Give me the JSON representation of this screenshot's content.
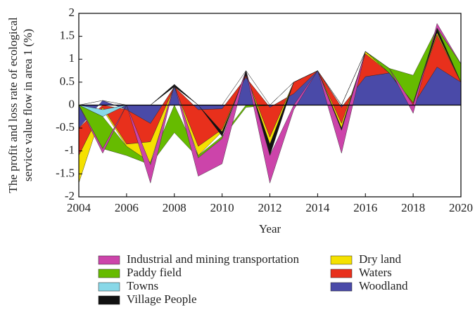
{
  "chart_data": {
    "type": "stacked_area",
    "xlabel": "Year",
    "ylabel": [
      "The profit and loss rate of ecological",
      "service value flow in area 1 (%)"
    ],
    "x": [
      2004,
      2005,
      2006,
      2007,
      2008,
      2009,
      2010,
      2011,
      2012,
      2013,
      2014,
      2015,
      2016,
      2017,
      2018,
      2019,
      2020
    ],
    "xlim": [
      2004,
      2020
    ],
    "xticks": [
      2004,
      2006,
      2008,
      2010,
      2012,
      2014,
      2016,
      2018,
      2020
    ],
    "ylim": [
      -2,
      2
    ],
    "yticks": [
      2,
      1.5,
      1,
      0.5,
      0,
      -0.5,
      -1,
      -1.5,
      -2
    ],
    "series": [
      {
        "name": "Industrial and mining transportation",
        "color": "#cc44aa",
        "values": [
          0,
          -0.1,
          0,
          -0.4,
          0,
          -0.4,
          -0.55,
          0,
          -0.6,
          -0.1,
          0,
          -0.5,
          0,
          0,
          -0.18,
          0.1,
          0
        ]
      },
      {
        "name": "Paddy field",
        "color": "#66bb00",
        "values": [
          0,
          -0.7,
          -0.2,
          -0.05,
          -0.6,
          -0.05,
          -0.05,
          -0.05,
          0,
          0,
          0,
          0,
          0,
          0.1,
          0.6,
          0,
          0.4
        ]
      },
      {
        "name": "Towns",
        "color": "#88d8e8",
        "values": [
          0,
          -0.15,
          0,
          0,
          0,
          0,
          0,
          0,
          0,
          0,
          0,
          0,
          0,
          0,
          0,
          0,
          0
        ]
      },
      {
        "name": "Village People",
        "color": "#111111",
        "values": [
          0,
          0,
          0,
          0,
          0.05,
          0,
          -0.1,
          0.1,
          -0.25,
          0,
          0,
          -0.05,
          0,
          0,
          0,
          0.1,
          0
        ]
      },
      {
        "name": "Dry land",
        "color": "#f5e100",
        "values": [
          -0.6,
          -0.05,
          -0.05,
          -0.45,
          0,
          -0.2,
          -0.05,
          0,
          -0.15,
          0,
          0,
          -0.1,
          0.05,
          0,
          0,
          0.05,
          0
        ]
      },
      {
        "name": "Waters",
        "color": "#e8301c",
        "values": [
          -0.6,
          -0.05,
          -0.75,
          -0.4,
          0,
          -0.8,
          -0.45,
          0.05,
          -0.65,
          0.25,
          0,
          -0.35,
          0.5,
          0,
          0.05,
          0.7,
          0
        ]
      },
      {
        "name": "Woodland",
        "color": "#4a4aa8",
        "values": [
          -0.5,
          0.1,
          -0.1,
          -0.4,
          0.4,
          -0.1,
          -0.08,
          0.6,
          -0.05,
          0.25,
          0.75,
          -0.05,
          0.62,
          0.7,
          0,
          0.83,
          0.5
        ]
      }
    ]
  }
}
